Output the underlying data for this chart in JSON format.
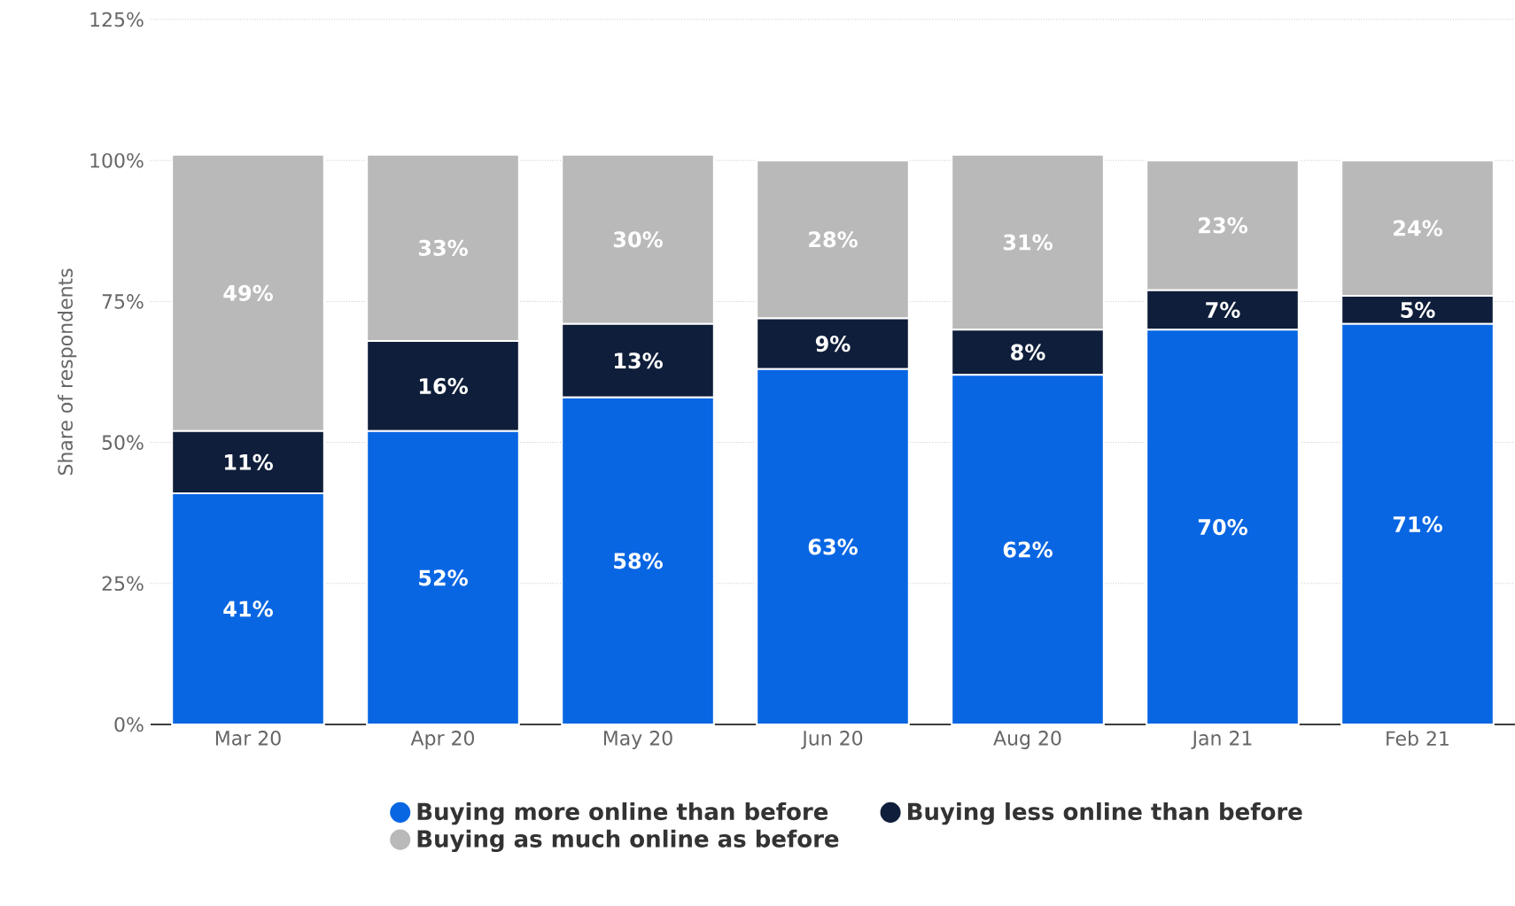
{
  "chart_data": {
    "type": "bar",
    "stacked": true,
    "ylabel": "Share of respondents",
    "categories": [
      "Mar 20",
      "Apr 20",
      "May 20",
      "Jun 20",
      "Aug 20",
      "Jan 21",
      "Feb 21"
    ],
    "series": [
      {
        "name": "Buying more online than before",
        "color": "#0866e3",
        "values": [
          41,
          52,
          58,
          63,
          62,
          70,
          71
        ],
        "value_labels": [
          "41%",
          "52%",
          "58%",
          "63%",
          "62%",
          "70%",
          "71%"
        ]
      },
      {
        "name": "Buying less online than before",
        "color": "#0f1e3a",
        "values": [
          11,
          16,
          13,
          9,
          8,
          7,
          5
        ],
        "value_labels": [
          "11%",
          "16%",
          "13%",
          "9%",
          "8%",
          "7%",
          "5%"
        ]
      },
      {
        "name": "Buying as much online as before",
        "color": "#b9b9b9",
        "values": [
          49,
          33,
          30,
          28,
          31,
          23,
          24
        ],
        "value_labels": [
          "49%",
          "33%",
          "30%",
          "28%",
          "31%",
          "23%",
          "24%"
        ]
      }
    ],
    "ylim": [
      0,
      125
    ],
    "yticks": [
      {
        "value": 0,
        "label": "0%"
      },
      {
        "value": 25,
        "label": "25%"
      },
      {
        "value": 50,
        "label": "50%"
      },
      {
        "value": 75,
        "label": "75%"
      },
      {
        "value": 100,
        "label": "100%"
      },
      {
        "value": 125,
        "label": "125%"
      }
    ],
    "grid": "y",
    "legend": "bottom"
  }
}
